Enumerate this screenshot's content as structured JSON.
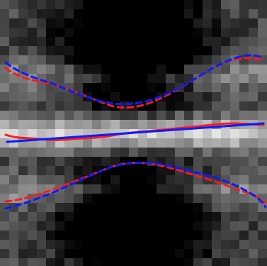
{
  "image": {
    "kind": "pixelated-grayscale-microscopy-tile",
    "grid": {
      "cols": 29,
      "rows": 29
    },
    "overlay_colors": {
      "red": "#ff1a1a",
      "blue": "#0a1cff"
    },
    "traces": [
      {
        "name": "top-boundary-red-dashed",
        "color": "red",
        "style": "dashed"
      },
      {
        "name": "top-boundary-blue-dashed",
        "color": "blue",
        "style": "dashed"
      },
      {
        "name": "midline-red-solid",
        "color": "red",
        "style": "solid"
      },
      {
        "name": "midline-blue-fit",
        "color": "blue",
        "style": "solid"
      },
      {
        "name": "bottom-boundary-red-dashed",
        "color": "red",
        "style": "dashed"
      },
      {
        "name": "bottom-boundary-blue-dashed",
        "color": "blue",
        "style": "dashed"
      }
    ]
  }
}
